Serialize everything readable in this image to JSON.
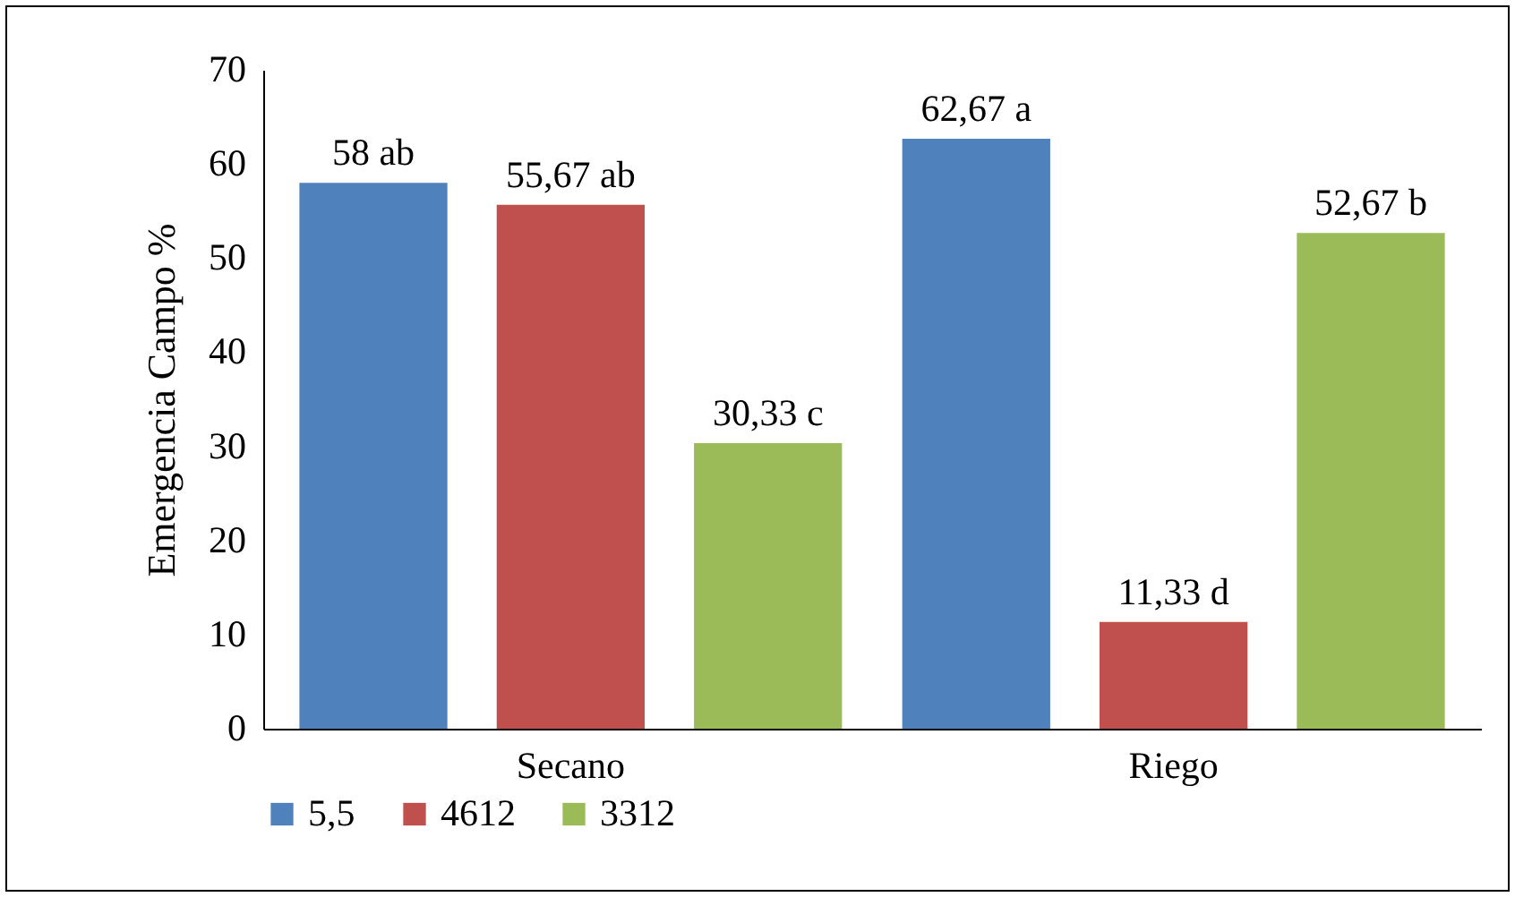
{
  "chart_data": {
    "type": "bar",
    "ylabel": "Emergencia Campo %",
    "categories": [
      "Secano",
      "Riego"
    ],
    "series": [
      {
        "name": "5,5",
        "color": "#4f81bd",
        "values": [
          58,
          62.67
        ],
        "value_labels": [
          "58 ab",
          "62,67 a"
        ]
      },
      {
        "name": "4612",
        "color": "#c0504d",
        "values": [
          55.67,
          11.33
        ],
        "value_labels": [
          "55,67 ab",
          "11,33 d"
        ]
      },
      {
        "name": "3312",
        "color": "#9bbb59",
        "values": [
          30.33,
          52.67
        ],
        "value_labels": [
          "30,33 c",
          "52,67 b"
        ]
      }
    ],
    "ylim": [
      0,
      70
    ],
    "yticks": [
      0,
      10,
      20,
      30,
      40,
      50,
      60,
      70
    ],
    "grid": false,
    "legend": "bottom"
  }
}
